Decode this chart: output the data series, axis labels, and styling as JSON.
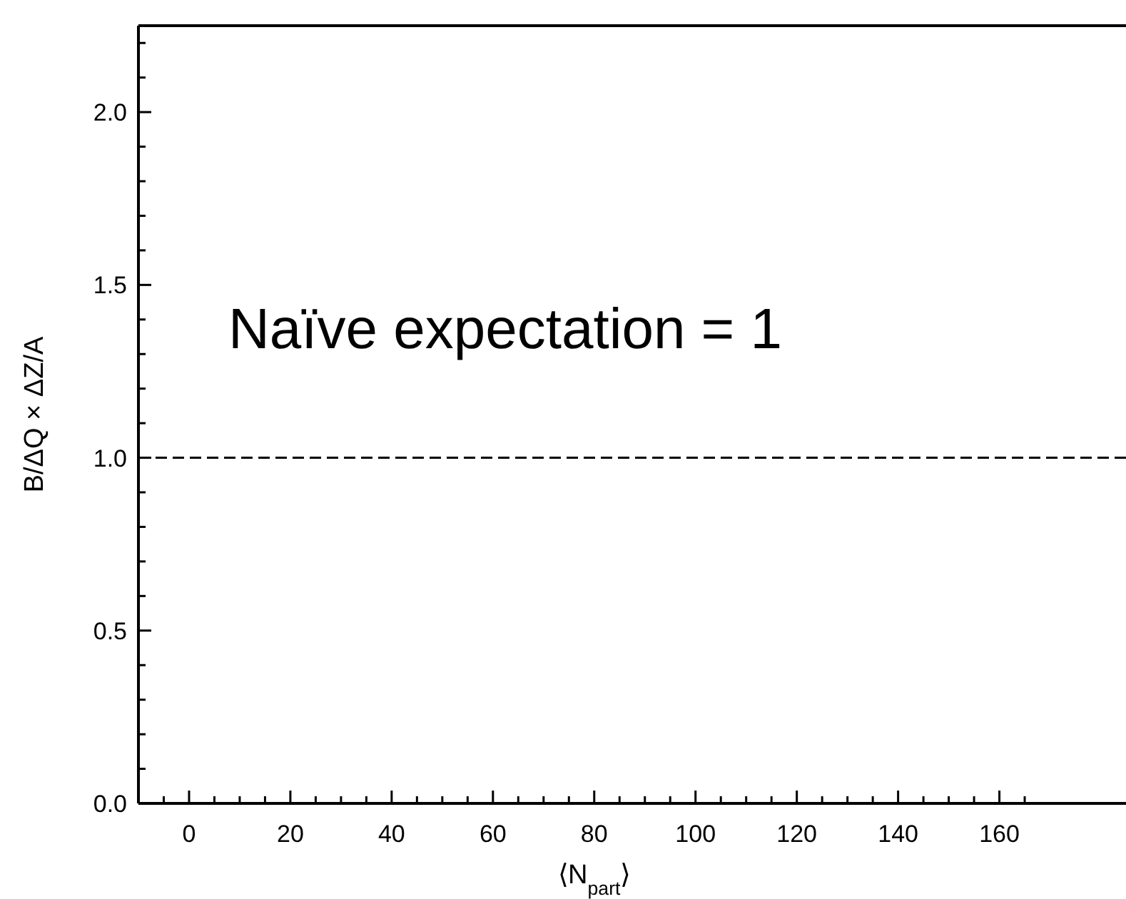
{
  "chart_data": {
    "type": "line",
    "xlabel": "⟨N$_{part}$⟩",
    "ylabel": "B/ΔQ × ΔZ/A",
    "annotations": [
      "Naïve expectation = 1"
    ],
    "xlim": [
      -10,
      185
    ],
    "ylim": [
      0,
      2.25
    ],
    "xticks": [
      {
        "value": -5,
        "label": null
      },
      0,
      {
        "value": 5,
        "label": null
      },
      {
        "value": 10,
        "label": null
      },
      {
        "value": 15,
        "label": null
      },
      20,
      {
        "value": 25,
        "label": null
      },
      {
        "value": 30,
        "label": null
      },
      {
        "value": 35,
        "label": null
      },
      40,
      {
        "value": 45,
        "label": null
      },
      {
        "value": 50,
        "label": null
      },
      {
        "value": 55,
        "label": null
      },
      60,
      {
        "value": 65,
        "label": null
      },
      {
        "value": 70,
        "label": null
      },
      {
        "value": 75,
        "label": null
      },
      80,
      {
        "value": 85,
        "label": null
      },
      {
        "value": 90,
        "label": null
      },
      {
        "value": 95,
        "label": null
      },
      100,
      {
        "value": 105,
        "label": null
      },
      {
        "value": 110,
        "label": null
      },
      {
        "value": 115,
        "label": null
      },
      120,
      {
        "value": 125,
        "label": null
      },
      {
        "value": 130,
        "label": null
      },
      {
        "value": 135,
        "label": null
      },
      140,
      {
        "value": 145,
        "label": null
      },
      {
        "value": 150,
        "label": null
      },
      {
        "value": 155,
        "label": null
      },
      160,
      {
        "value": 165,
        "label": null
      }
    ],
    "yticks": [
      {
        "value": 0,
        "label": "0.0"
      },
      {
        "value": 0.1,
        "label": null
      },
      {
        "value": 0.2,
        "label": null
      },
      {
        "value": 0.3,
        "label": null
      },
      {
        "value": 0.4,
        "label": null
      },
      0.5,
      {
        "value": 0.6,
        "label": null
      },
      {
        "value": 0.7,
        "label": null
      },
      {
        "value": 0.8,
        "label": null
      },
      {
        "value": 0.9,
        "label": null
      },
      {
        "value": 1,
        "label": "1.0"
      },
      {
        "value": 1.1,
        "label": null
      },
      {
        "value": 1.2,
        "label": null
      },
      {
        "value": 1.3,
        "label": null
      },
      {
        "value": 1.4,
        "label": null
      },
      1.5,
      {
        "value": 1.6,
        "label": null
      },
      {
        "value": 1.7,
        "label": null
      },
      {
        "value": 1.8,
        "label": null
      },
      {
        "value": 1.9,
        "label": null
      },
      {
        "value": 2,
        "label": "2.0"
      },
      {
        "value": 2.1,
        "label": null
      },
      {
        "value": 2.2,
        "label": null
      }
    ],
    "ref_lines": [
      {
        "axis": "y",
        "value": 1,
        "color": "#000000",
        "line_style": "dashed"
      }
    ]
  }
}
